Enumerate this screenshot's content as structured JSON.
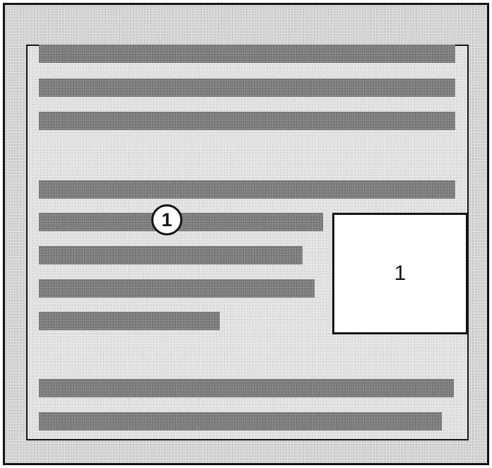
{
  "diagram": {
    "callout_label": "1",
    "figure_label": "1"
  }
}
